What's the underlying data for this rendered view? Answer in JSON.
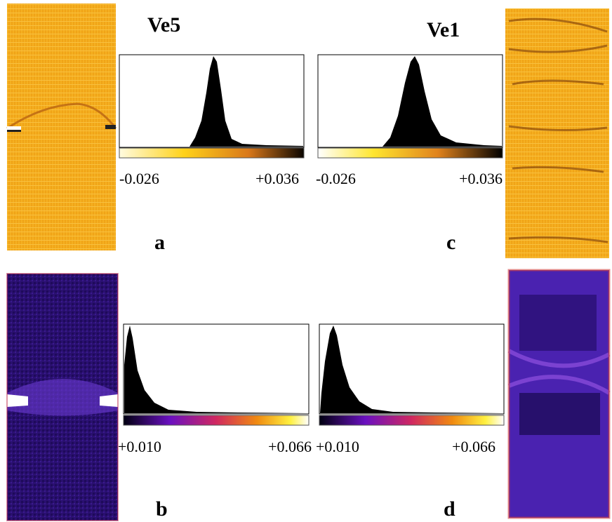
{
  "header": {
    "left": "Ve5",
    "right": "Ve1"
  },
  "panels": [
    {
      "id": "a",
      "range": [
        "-0.026",
        "+0.036"
      ]
    },
    {
      "id": "b",
      "range": [
        "+0.010",
        "+0.066"
      ]
    },
    {
      "id": "c",
      "range": [
        "-0.026",
        "+0.036"
      ]
    },
    {
      "id": "d",
      "range": [
        "+0.010",
        "+0.066"
      ]
    }
  ]
}
